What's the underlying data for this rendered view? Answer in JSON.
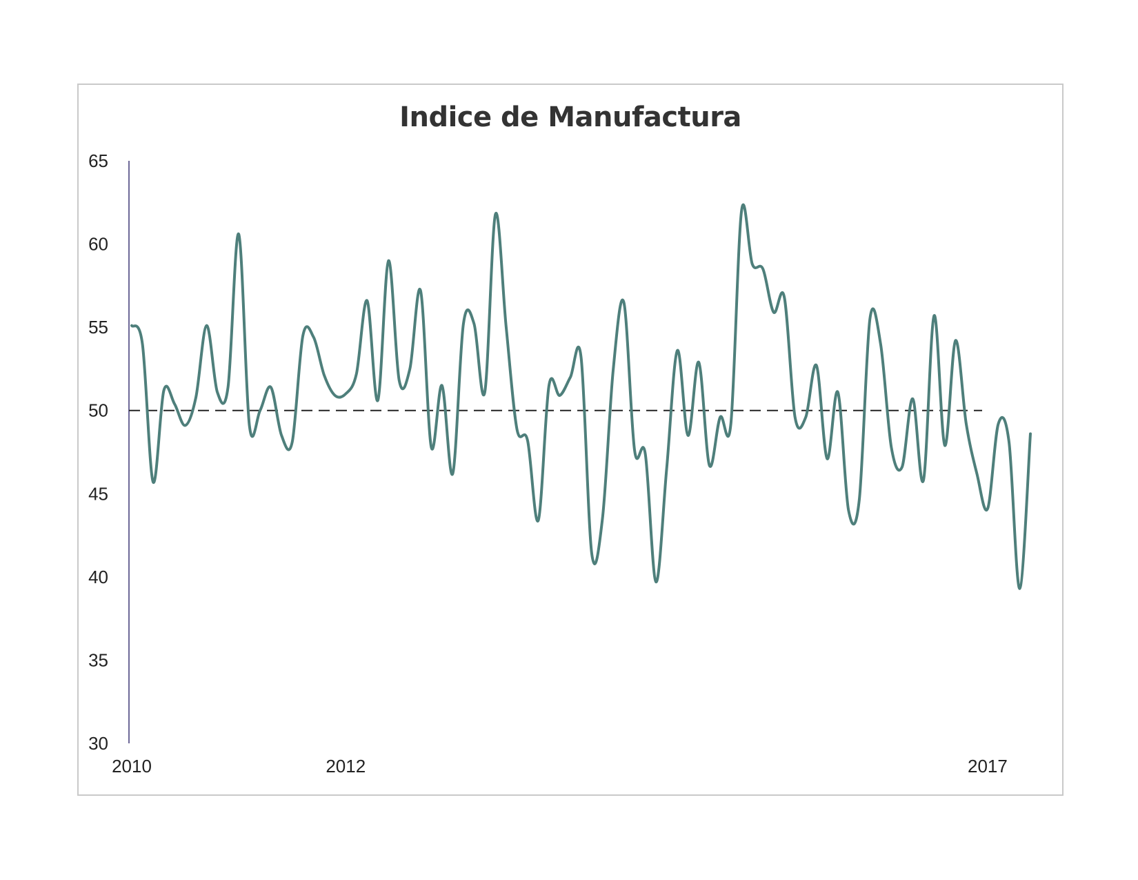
{
  "chart_data": {
    "type": "line",
    "title": "Indice de Manufactura",
    "xlabel": "",
    "ylabel": "",
    "ylim": [
      30,
      65
    ],
    "yticks": [
      30,
      35,
      40,
      45,
      50,
      55,
      60,
      65
    ],
    "xticks": [
      {
        "label": "2010",
        "x": 0
      },
      {
        "label": "2012",
        "x": 20
      },
      {
        "label": "2017",
        "x": 80
      }
    ],
    "xlim": [
      0,
      84
    ],
    "reference_line": {
      "y": 50,
      "style": "dashed",
      "color": "#222222"
    },
    "grid": false,
    "legend": "none",
    "series": [
      {
        "color": "#4e7f7b",
        "x": [
          0,
          1,
          2,
          3,
          4,
          5,
          6,
          7,
          8,
          9,
          10,
          11,
          12,
          13,
          14,
          15,
          16,
          17,
          18,
          19,
          20,
          21,
          22,
          23,
          24,
          25,
          26,
          27,
          28,
          29,
          30,
          31,
          32,
          33,
          34,
          35,
          36,
          37,
          38,
          39,
          40,
          41,
          42,
          43,
          44,
          45,
          46,
          47,
          48,
          49,
          50,
          51,
          52,
          53,
          54,
          55,
          56,
          57,
          58,
          59,
          60,
          61,
          62,
          63,
          64,
          65,
          66,
          67,
          68,
          69,
          70,
          71,
          72,
          73,
          74,
          75,
          76,
          77,
          78,
          79,
          80,
          81,
          82,
          83,
          84
        ],
        "values": [
          55.1,
          54.0,
          45.7,
          51.2,
          50.4,
          49.1,
          50.8,
          55.1,
          51.1,
          51.4,
          60.6,
          49.1,
          50.0,
          51.4,
          48.5,
          48.1,
          54.5,
          54.4,
          52.1,
          50.9,
          51.0,
          52.2,
          56.6,
          50.6,
          59.0,
          51.8,
          52.5,
          57.2,
          47.8,
          51.5,
          46.2,
          55.2,
          55.2,
          51.1,
          61.8,
          55.0,
          48.9,
          48.2,
          43.4,
          51.5,
          50.9,
          52.0,
          53.2,
          41.4,
          43.5,
          52.4,
          56.5,
          47.6,
          47.4,
          39.7,
          46.5,
          53.6,
          48.5,
          52.9,
          46.7,
          49.6,
          49.2,
          62.0,
          58.8,
          58.5,
          55.9,
          56.8,
          49.6,
          49.6,
          52.7,
          47.1,
          51.1,
          44.0,
          44.6,
          55.5,
          54.0,
          47.8,
          46.6,
          50.7,
          45.8,
          55.7,
          47.9,
          54.2,
          49.2,
          46.2,
          44.1,
          49.2,
          48.1,
          39.3,
          48.6
        ]
      }
    ]
  }
}
